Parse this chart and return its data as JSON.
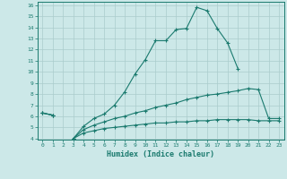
{
  "xlabel": "Humidex (Indice chaleur)",
  "x": [
    0,
    1,
    2,
    3,
    4,
    5,
    6,
    7,
    8,
    9,
    10,
    11,
    12,
    13,
    14,
    15,
    16,
    17,
    18,
    19,
    20,
    21,
    22,
    23
  ],
  "top_y": [
    6.3,
    6.1,
    null,
    4.0,
    5.1,
    5.8,
    6.2,
    7.0,
    8.2,
    9.8,
    11.1,
    12.8,
    12.8,
    13.8,
    13.9,
    15.8,
    15.5,
    13.9,
    12.6,
    10.3,
    null,
    null,
    null,
    null
  ],
  "mid_y": [
    6.3,
    6.1,
    null,
    4.0,
    4.8,
    5.2,
    5.5,
    5.8,
    6.0,
    6.3,
    6.5,
    6.8,
    7.0,
    7.2,
    7.5,
    7.7,
    7.9,
    8.0,
    8.15,
    8.3,
    8.5,
    8.4,
    5.8,
    5.8
  ],
  "bot_y": [
    6.3,
    6.1,
    null,
    4.0,
    4.5,
    4.7,
    4.9,
    5.0,
    5.1,
    5.2,
    5.3,
    5.4,
    5.4,
    5.5,
    5.5,
    5.6,
    5.6,
    5.7,
    5.7,
    5.7,
    5.7,
    5.6,
    5.6,
    5.6
  ],
  "line_color": "#1a7a6e",
  "bg_color": "#cce8e8",
  "grid_color": "#aacccc",
  "ylim": [
    4,
    16
  ],
  "xlim": [
    -0.5,
    23.5
  ],
  "yticks": [
    4,
    5,
    6,
    7,
    8,
    9,
    10,
    11,
    12,
    13,
    14,
    15,
    16
  ],
  "xticks": [
    0,
    1,
    2,
    3,
    4,
    5,
    6,
    7,
    8,
    9,
    10,
    11,
    12,
    13,
    14,
    15,
    16,
    17,
    18,
    19,
    20,
    21,
    22,
    23
  ]
}
